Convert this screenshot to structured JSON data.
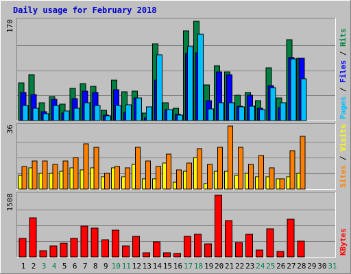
{
  "chart_data": {
    "type": "bar",
    "title": "Daily usage for February 2018",
    "categories": [
      "1",
      "2",
      "3",
      "4",
      "5",
      "6",
      "7",
      "8",
      "9",
      "10",
      "11",
      "12",
      "13",
      "14",
      "15",
      "16",
      "17",
      "18",
      "19",
      "20",
      "21",
      "22",
      "23",
      "24",
      "25",
      "26",
      "27",
      "28",
      "29",
      "30",
      "31"
    ],
    "weekend_days": [
      "3",
      "4",
      "10",
      "11",
      "17",
      "18",
      "24",
      "25",
      "31"
    ],
    "panels": [
      {
        "id": "pages-files-hits",
        "ymax_label": "170",
        "ylim": [
          0,
          170
        ],
        "right_label_parts": [
          {
            "text": "Pages",
            "color": "#00bfff"
          },
          {
            "text": " / ",
            "color": "#000000"
          },
          {
            "text": "Files",
            "color": "#0000ff"
          },
          {
            "text": " / ",
            "color": "#000000"
          },
          {
            "text": "Hits",
            "color": "#008040"
          }
        ],
        "series": [
          {
            "name": "Hits",
            "color": "#008040",
            "values": [
              64,
              78,
              30,
              40,
              28,
              54,
              62,
              58,
              17,
              68,
              48,
              50,
              13,
              130,
              30,
              21,
              151,
              168,
              60,
              93,
              82,
              43,
              47,
              33,
              89,
              38,
              136,
              105,
              0,
              0,
              0
            ]
          },
          {
            "name": "Files",
            "color": "#0000ff",
            "values": [
              47,
              44,
              15,
              36,
              13,
              37,
              50,
              47,
              9,
              52,
              14,
              38,
              5,
              68,
              18,
              10,
              113,
              114,
              33,
              82,
              78,
              24,
              43,
              21,
              59,
              22,
              106,
              105,
              0,
              0,
              0
            ]
          },
          {
            "name": "Pages",
            "color": "#00bfff",
            "values": [
              25,
              21,
              11,
              25,
              16,
              21,
              30,
              25,
              8,
              26,
              27,
              38,
              23,
              111,
              18,
              9,
              125,
              146,
              20,
              30,
              30,
              23,
              24,
              19,
              55,
              30,
              104,
              71,
              0,
              0,
              0
            ]
          }
        ]
      },
      {
        "id": "sites-visits",
        "ymax_label": "36",
        "ylim": [
          0,
          36
        ],
        "right_label_parts": [
          {
            "text": "Sites",
            "color": "#ff8000"
          },
          {
            "text": " / ",
            "color": "#000000"
          },
          {
            "text": "Visits",
            "color": "#ffff00"
          }
        ],
        "series": [
          {
            "name": "Visits",
            "color": "#ffff00",
            "values": [
              8,
              12,
              9,
              9,
              10,
              12,
              11,
              12,
              7,
              12,
              7,
              14,
              6,
              6,
              15,
              4,
              10,
              18,
              3,
              10,
              10,
              8,
              9,
              7,
              7,
              6,
              7,
              9,
              0,
              0,
              0
            ]
          },
          {
            "name": "Sites",
            "color": "#ff8000",
            "values": [
              13,
              16,
              16,
              14,
              16,
              18,
              26,
              24,
              9,
              13,
              12,
              24,
              16,
              13,
              20,
              11,
              15,
              23,
              14,
              24,
              36,
              24,
              14,
              19,
              12,
              6,
              22,
              30,
              0,
              0,
              0
            ]
          }
        ]
      },
      {
        "id": "kbytes",
        "ymax_label": "1508",
        "ylim": [
          0,
          1508
        ],
        "right_label_parts": [
          {
            "text": "KBytes",
            "color": "#ff0000"
          }
        ],
        "series": [
          {
            "name": "KBytes",
            "color": "#ff0000",
            "values": [
              440,
              927,
              142,
              268,
              325,
              436,
              743,
              681,
              412,
              644,
              264,
              493,
              96,
              365,
              93,
              88,
              492,
              544,
              317,
              1478,
              874,
              349,
              533,
              162,
              665,
              126,
              897,
              376,
              0,
              0,
              0
            ]
          }
        ]
      }
    ],
    "colors": {
      "background": "#c0c0c0",
      "plot_bg": "#c0c0c0",
      "title": "#0000ff",
      "weekday_label": "#000000",
      "weekend_label": "#00804a",
      "grid": "#808080"
    }
  }
}
